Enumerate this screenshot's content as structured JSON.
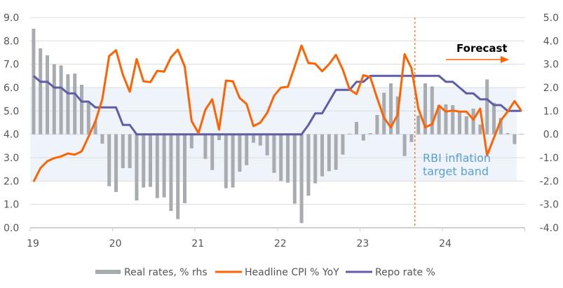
{
  "chart_data": {
    "type": "bar+line",
    "title": "",
    "x_tick_labels": [
      "19",
      "20",
      "21",
      "22",
      "23",
      "24"
    ],
    "x_start_year": 2019,
    "frequency": "monthly",
    "left_axis": {
      "ylim": [
        0,
        9
      ],
      "ticks": [
        "0.0",
        "1.0",
        "2.0",
        "3.0",
        "4.0",
        "5.0",
        "6.0",
        "7.0",
        "8.0",
        "9.0"
      ]
    },
    "right_axis": {
      "ylim": [
        -4,
        5
      ],
      "ticks": [
        "-4.0",
        "-3.0",
        "-2.0",
        "-1.0",
        "0.0",
        "1.0",
        "2.0",
        "3.0",
        "4.0",
        "5.0"
      ]
    },
    "grid": true,
    "legend_position": "bottom",
    "shaded_band": {
      "label_lines": [
        "RBI inflation",
        "target band"
      ],
      "range_left_axis": [
        2,
        6
      ],
      "color": "#eef4fa",
      "label_color": "#5aa0d6"
    },
    "forecast": {
      "label": "Forecast",
      "starts_after_month_index": 55,
      "color": "#ff6200"
    },
    "series": [
      {
        "name": "Real rates, % rhs",
        "kind": "bar",
        "axis": "right",
        "color": "#a8abb0",
        "values": [
          4.52,
          3.68,
          3.38,
          3.0,
          2.95,
          2.57,
          2.6,
          2.12,
          1.35,
          0.55,
          -0.4,
          -2.22,
          -2.47,
          -1.45,
          -1.45,
          -2.83,
          -2.28,
          -2.25,
          -2.73,
          -2.7,
          -3.28,
          -3.63,
          -2.95,
          -0.6,
          0.0,
          -1.05,
          -1.53,
          -0.25,
          -2.31,
          -2.28,
          -1.6,
          -1.32,
          -0.36,
          -0.48,
          -0.9,
          -1.65,
          -2.0,
          -2.07,
          -2.97,
          -3.8,
          -2.63,
          -2.1,
          -1.8,
          -1.58,
          -1.52,
          -0.87,
          0.03,
          0.53,
          -0.27,
          0.05,
          0.83,
          1.78,
          2.18,
          1.62,
          -0.93,
          -0.33,
          0.8,
          2.18,
          2.05,
          1.25,
          1.28,
          1.25,
          0.95,
          0.77,
          1.1,
          0.42,
          2.35,
          1.35,
          0.7,
          0.05,
          -0.42,
          0.02
        ]
      },
      {
        "name": "Headline CPI % YoY",
        "kind": "line",
        "axis": "left",
        "color": "#ff6200",
        "values": [
          1.97,
          2.55,
          2.85,
          2.98,
          3.05,
          3.18,
          3.13,
          3.27,
          3.9,
          4.55,
          5.5,
          7.35,
          7.6,
          6.55,
          5.82,
          7.22,
          6.27,
          6.23,
          6.72,
          6.68,
          7.3,
          7.62,
          6.9,
          4.57,
          4.05,
          5.05,
          5.5,
          4.2,
          6.3,
          6.27,
          5.55,
          5.3,
          4.35,
          4.5,
          4.92,
          5.65,
          6.0,
          6.03,
          6.9,
          7.8,
          7.05,
          7.02,
          6.7,
          7.0,
          7.4,
          6.77,
          5.92,
          5.72,
          6.53,
          6.45,
          5.55,
          4.7,
          4.3,
          4.85,
          7.43,
          6.83,
          5.1,
          4.3,
          4.43,
          5.23,
          4.97,
          5.02,
          4.97,
          4.97,
          4.63,
          5.1,
          3.1,
          3.85,
          4.6,
          4.97,
          5.42,
          5.0
        ]
      },
      {
        "name": "Repo rate %",
        "kind": "line",
        "axis": "left",
        "color": "#5d5da8",
        "values": [
          6.5,
          6.25,
          6.25,
          6.0,
          6.0,
          5.75,
          5.75,
          5.4,
          5.4,
          5.15,
          5.15,
          5.15,
          5.15,
          4.4,
          4.4,
          4.0,
          4.0,
          4.0,
          4.0,
          4.0,
          4.0,
          4.0,
          4.0,
          4.0,
          4.0,
          4.0,
          4.0,
          4.0,
          4.0,
          4.0,
          4.0,
          4.0,
          4.0,
          4.0,
          4.0,
          4.0,
          4.0,
          4.0,
          4.0,
          4.0,
          4.4,
          4.9,
          4.9,
          5.4,
          5.9,
          5.9,
          5.9,
          6.25,
          6.25,
          6.5,
          6.5,
          6.5,
          6.5,
          6.5,
          6.5,
          6.5,
          6.5,
          6.5,
          6.5,
          6.5,
          6.25,
          6.25,
          6.0,
          5.75,
          5.75,
          5.5,
          5.5,
          5.25,
          5.25,
          5.0,
          5.0,
          5.0
        ]
      }
    ]
  }
}
